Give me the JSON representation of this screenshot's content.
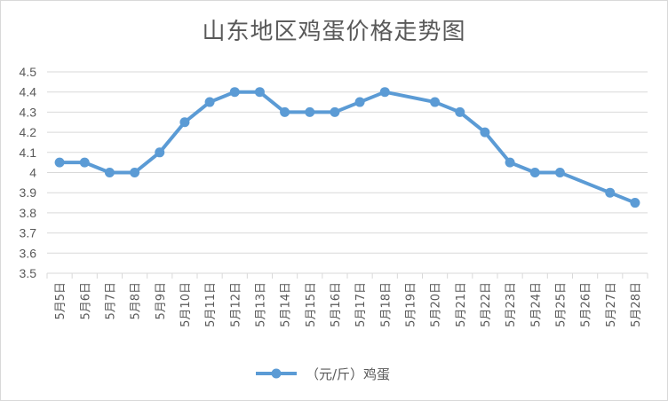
{
  "chart_data": {
    "type": "line",
    "title": "山东地区鸡蛋价格走势图",
    "xlabel": "",
    "ylabel": "",
    "ylim": [
      3.5,
      4.5
    ],
    "ytick_step": 0.1,
    "grid": true,
    "legend_position": "bottom",
    "categories": [
      "5月5日",
      "5月6日",
      "5月7日",
      "5月8日",
      "5月9日",
      "5月10日",
      "5月11日",
      "5月12日",
      "5月13日",
      "5月14日",
      "5月15日",
      "5月16日",
      "5月17日",
      "5月18日",
      "5月19日",
      "5月20日",
      "5月21日",
      "5月22日",
      "5月23日",
      "5月24日",
      "5月25日",
      "5月26日",
      "5月27日",
      "5月28日"
    ],
    "series": [
      {
        "name": "（元/斤）鸡蛋",
        "color": "#5b9bd5",
        "values": [
          4.05,
          4.05,
          4.0,
          4.0,
          4.1,
          4.25,
          4.35,
          4.4,
          4.4,
          4.3,
          4.3,
          4.3,
          4.35,
          4.4,
          null,
          4.35,
          4.3,
          4.2,
          4.05,
          4.0,
          4.0,
          null,
          3.9,
          3.85
        ]
      }
    ]
  }
}
